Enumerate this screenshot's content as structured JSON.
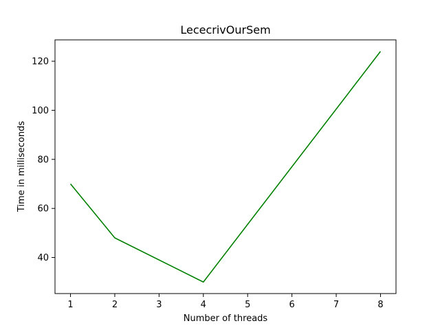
{
  "chart_data": {
    "type": "line",
    "title": "LececrivOurSem",
    "xlabel": "Number of threads",
    "ylabel": "Time in milliseconds",
    "xlim": [
      0.65,
      8.35
    ],
    "ylim": [
      25.3,
      128.7
    ],
    "x_ticks": [
      1,
      2,
      3,
      4,
      5,
      6,
      7,
      8
    ],
    "y_ticks": [
      40,
      60,
      80,
      100,
      120
    ],
    "grid": false,
    "legend": "none",
    "series": [
      {
        "color": "#008000",
        "x": [
          1,
          2,
          4,
          8
        ],
        "y": [
          70,
          48,
          30,
          124
        ]
      }
    ]
  }
}
